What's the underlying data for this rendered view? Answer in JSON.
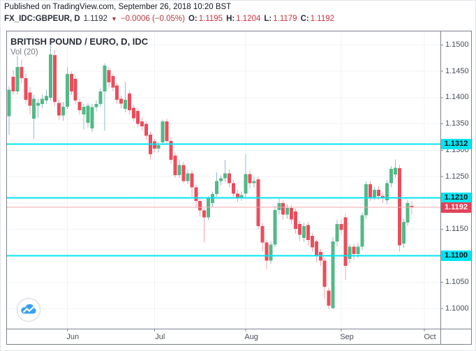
{
  "header": {
    "published_line": "Published on TradingView.com, September 26, 2018 10:20 BST",
    "symbol": "FX_IDC:GBPEUR, D",
    "last_price": "1.1192",
    "direction_symbol": "▼",
    "change": "−0.0006 (−0.05%)",
    "ohlc": [
      {
        "label": "O:",
        "value": "1.1195"
      },
      {
        "label": "H:",
        "value": "1.1204"
      },
      {
        "label": "L:",
        "value": "1.1179"
      },
      {
        "label": "C:",
        "value": "1.1192"
      }
    ]
  },
  "chart": {
    "title": "BRITISH POUND / EURO, D, IDC",
    "indicator": "Vol (20)"
  },
  "colors": {
    "up": "#53b987",
    "down": "#eb4d5c",
    "up_wick": "#8fbdc9",
    "down_wick": "#f2a3ab",
    "level_line": "#00e5f2",
    "level_label_bg": "#00e5f2",
    "level_label_text": "#06121a",
    "last_line": "#f2a9ad",
    "last_label_bg": "#e0445a",
    "last_label_text": "#ffffff",
    "grid": "#f0f2f6",
    "axis_text": "#474d57",
    "border": "#7d828c",
    "header_text": "#131722",
    "ohlc_value": "#cc2f3d",
    "change_red": "#b5383f",
    "logo_blue": "#3aa2f0"
  },
  "chart_data": {
    "type": "candlestick",
    "symbol": "FX_IDC:GBPEUR",
    "timeframe": "D",
    "title": "BRITISH POUND / EURO, D, IDC",
    "ylim": [
      1.09616,
      1.15258
    ],
    "grid_levels": [
      1.1,
      1.105,
      1.11,
      1.115,
      1.12,
      1.125,
      1.13,
      1.135,
      1.14,
      1.145,
      1.15
    ],
    "y_ticks": [
      {
        "label": "1.1500",
        "value": 1.15
      },
      {
        "label": "1.1450",
        "value": 1.145
      },
      {
        "label": "1.1400",
        "value": 1.14
      },
      {
        "label": "1.1350",
        "value": 1.135
      },
      {
        "label": "1.1300",
        "value": 1.13
      },
      {
        "label": "1.1250",
        "value": 1.125
      },
      {
        "label": "1.1150",
        "value": 1.115
      },
      {
        "label": "1.1050",
        "value": 1.105
      },
      {
        "label": "1.1000",
        "value": 1.1
      }
    ],
    "x_ticks": [
      {
        "label": "Jun",
        "index": 14
      },
      {
        "label": "Jul",
        "index": 35
      },
      {
        "label": "Aug",
        "index": 57
      },
      {
        "label": "Sep",
        "index": 80
      },
      {
        "label": "Oct",
        "index": 100
      }
    ],
    "level_lines": [
      {
        "price": 1.1312,
        "label": "1.1312"
      },
      {
        "price": 1.121,
        "label": "1.1210"
      },
      {
        "price": 1.11,
        "label": "1.1100"
      }
    ],
    "last_price": {
      "price": 1.1192,
      "label": "1.1192"
    },
    "candles": [
      [
        1.1365,
        1.1422,
        1.133,
        1.1415
      ],
      [
        1.144,
        1.1452,
        1.1405,
        1.1412
      ],
      [
        1.1412,
        1.148,
        1.1406,
        1.1458
      ],
      [
        1.1458,
        1.1472,
        1.1428,
        1.1437
      ],
      [
        1.1437,
        1.1445,
        1.1388,
        1.1396
      ],
      [
        1.141,
        1.142,
        1.1368,
        1.1385
      ],
      [
        1.136,
        1.1405,
        1.1322,
        1.1398
      ],
      [
        1.1385,
        1.1398,
        1.1362,
        1.139
      ],
      [
        1.1388,
        1.1406,
        1.138,
        1.1398
      ],
      [
        1.1395,
        1.1415,
        1.1388,
        1.1403
      ],
      [
        1.14,
        1.1502,
        1.1395,
        1.1482
      ],
      [
        1.1481,
        1.149,
        1.1385,
        1.1392
      ],
      [
        1.139,
        1.1398,
        1.1358,
        1.1366
      ],
      [
        1.1366,
        1.1392,
        1.1356,
        1.1383
      ],
      [
        1.1383,
        1.1458,
        1.1378,
        1.1445
      ],
      [
        1.1445,
        1.145,
        1.1405,
        1.1412
      ],
      [
        1.1436,
        1.1442,
        1.1388,
        1.1395
      ],
      [
        1.1392,
        1.1398,
        1.1368,
        1.1376
      ],
      [
        1.1368,
        1.1388,
        1.134,
        1.1383
      ],
      [
        1.1352,
        1.139,
        1.1344,
        1.1385
      ],
      [
        1.1342,
        1.1388,
        1.1335,
        1.1382
      ],
      [
        1.1382,
        1.1395,
        1.1374,
        1.1388
      ],
      [
        1.1388,
        1.1418,
        1.1382,
        1.1412
      ],
      [
        1.1412,
        1.1465,
        1.1337,
        1.1461
      ],
      [
        1.1452,
        1.1458,
        1.142,
        1.1429
      ],
      [
        1.1441,
        1.1446,
        1.1412,
        1.1419
      ],
      [
        1.1423,
        1.1428,
        1.1388,
        1.1396
      ],
      [
        1.1398,
        1.1404,
        1.138,
        1.1389
      ],
      [
        1.1379,
        1.143,
        1.1372,
        1.1396
      ],
      [
        1.1408,
        1.1414,
        1.1368,
        1.1376
      ],
      [
        1.1381,
        1.1386,
        1.1355,
        1.1361
      ],
      [
        1.1375,
        1.138,
        1.1344,
        1.135
      ],
      [
        1.1355,
        1.1362,
        1.1338,
        1.1346
      ],
      [
        1.135,
        1.1355,
        1.132,
        1.1328
      ],
      [
        1.133,
        1.1336,
        1.1283,
        1.1293
      ],
      [
        1.1317,
        1.1322,
        1.1296,
        1.1303
      ],
      [
        1.1303,
        1.1316,
        1.1296,
        1.131
      ],
      [
        1.1315,
        1.1358,
        1.131,
        1.1355
      ],
      [
        1.1355,
        1.136,
        1.1312,
        1.1318
      ],
      [
        1.1318,
        1.1325,
        1.1275,
        1.1282
      ],
      [
        1.129,
        1.1296,
        1.1248,
        1.1253
      ],
      [
        1.1253,
        1.1282,
        1.1248,
        1.1272
      ],
      [
        1.1272,
        1.1278,
        1.1238,
        1.1242
      ],
      [
        1.1242,
        1.1264,
        1.1236,
        1.1256
      ],
      [
        1.1256,
        1.1262,
        1.1212,
        1.123
      ],
      [
        1.123,
        1.1235,
        1.1192,
        1.1204
      ],
      [
        1.1204,
        1.1212,
        1.1174,
        1.1186
      ],
      [
        1.1186,
        1.119,
        1.1125,
        1.1173
      ],
      [
        1.1173,
        1.1213,
        1.1168,
        1.1209
      ],
      [
        1.12,
        1.1222,
        1.1192,
        1.1217
      ],
      [
        1.1217,
        1.1258,
        1.1212,
        1.1242
      ],
      [
        1.1242,
        1.1252,
        1.1234,
        1.1247
      ],
      [
        1.1247,
        1.1282,
        1.124,
        1.1256
      ],
      [
        1.1256,
        1.1264,
        1.123,
        1.1238
      ],
      [
        1.1238,
        1.1244,
        1.1212,
        1.1218
      ],
      [
        1.1218,
        1.1225,
        1.1202,
        1.121
      ],
      [
        1.121,
        1.1222,
        1.1204,
        1.1215
      ],
      [
        1.1218,
        1.1293,
        1.121,
        1.1255
      ],
      [
        1.1255,
        1.1262,
        1.1228,
        1.1238
      ],
      [
        1.1238,
        1.125,
        1.123,
        1.1242
      ],
      [
        1.1245,
        1.125,
        1.115,
        1.1156
      ],
      [
        1.1156,
        1.1162,
        1.1108,
        1.1125
      ],
      [
        1.1125,
        1.113,
        1.1074,
        1.1091
      ],
      [
        1.1091,
        1.1128,
        1.1085,
        1.1121
      ],
      [
        1.1121,
        1.1195,
        1.1116,
        1.1187
      ],
      [
        1.1187,
        1.1208,
        1.1178,
        1.12
      ],
      [
        1.12,
        1.1205,
        1.1168,
        1.1178
      ],
      [
        1.1178,
        1.1198,
        1.117,
        1.1191
      ],
      [
        1.1191,
        1.1196,
        1.116,
        1.1169
      ],
      [
        1.1184,
        1.119,
        1.1142,
        1.1151
      ],
      [
        1.116,
        1.1166,
        1.1128,
        1.114
      ],
      [
        1.1134,
        1.1162,
        1.1126,
        1.1156
      ],
      [
        1.1158,
        1.1164,
        1.112,
        1.113
      ],
      [
        1.1138,
        1.1144,
        1.1108,
        1.1116
      ],
      [
        1.1127,
        1.1132,
        1.1088,
        1.1101
      ],
      [
        1.1107,
        1.1113,
        1.108,
        1.1091
      ],
      [
        1.1091,
        1.1096,
        1.1018,
        1.1041
      ],
      [
        1.1034,
        1.104,
        1.0999,
        1.1005
      ],
      [
        1.1001,
        1.1135,
        1.0999,
        1.1127
      ],
      [
        1.1127,
        1.1168,
        1.1118,
        1.116
      ],
      [
        1.116,
        1.117,
        1.114,
        1.1149
      ],
      [
        1.1173,
        1.118,
        1.1054,
        1.1081
      ],
      [
        1.1094,
        1.1122,
        1.1086,
        1.1117
      ],
      [
        1.1117,
        1.1123,
        1.1092,
        1.1103
      ],
      [
        1.1103,
        1.1125,
        1.1096,
        1.1117
      ],
      [
        1.1117,
        1.1182,
        1.111,
        1.1177
      ],
      [
        1.1177,
        1.1241,
        1.117,
        1.1236
      ],
      [
        1.1236,
        1.1242,
        1.1204,
        1.1211
      ],
      [
        1.1211,
        1.123,
        1.1205,
        1.1225
      ],
      [
        1.1225,
        1.1232,
        1.1206,
        1.1213
      ],
      [
        1.1213,
        1.122,
        1.12,
        1.121
      ],
      [
        1.1205,
        1.1244,
        1.1198,
        1.1238
      ],
      [
        1.1238,
        1.127,
        1.123,
        1.1265
      ],
      [
        1.1254,
        1.1283,
        1.1248,
        1.1267
      ],
      [
        1.1266,
        1.1272,
        1.1108,
        1.112
      ],
      [
        1.1123,
        1.117,
        1.1115,
        1.1164
      ],
      [
        1.1163,
        1.1205,
        1.1156,
        1.12
      ],
      [
        1.1195,
        1.1204,
        1.1179,
        1.1192
      ]
    ]
  }
}
